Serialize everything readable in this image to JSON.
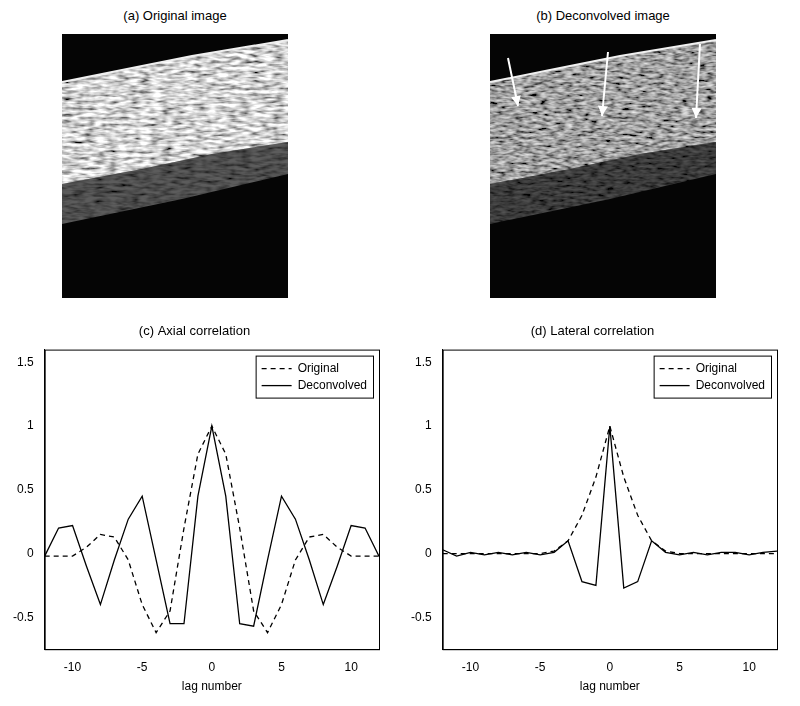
{
  "images": [
    {
      "title": "(a) Original image"
    },
    {
      "title": "(b) Deconvolved image"
    }
  ],
  "chart_data": [
    {
      "type": "line",
      "title": "(c) Axial correlation",
      "xlabel": "lag number",
      "x": [
        -12,
        -11,
        -10,
        -9,
        -8,
        -7,
        -6,
        -5,
        -4,
        -3,
        -2,
        -1,
        0,
        1,
        2,
        3,
        4,
        5,
        6,
        7,
        8,
        9,
        10,
        11,
        12
      ],
      "series": [
        {
          "name": "Original",
          "color": "#000000",
          "line_style": "dashed",
          "values": [
            -0.02,
            -0.02,
            -0.02,
            0.05,
            0.15,
            0.13,
            -0.05,
            -0.4,
            -0.62,
            -0.45,
            0.2,
            0.78,
            1,
            0.78,
            0.2,
            -0.45,
            -0.62,
            -0.4,
            -0.05,
            0.13,
            0.15,
            0.05,
            -0.02,
            -0.02,
            -0.02
          ]
        },
        {
          "name": "Deconvolved",
          "color": "#000000",
          "line_style": "solid",
          "values": [
            -0.02,
            0.2,
            0.22,
            -0.1,
            -0.4,
            -0.05,
            0.27,
            0.45,
            -0.05,
            -0.55,
            -0.55,
            0.45,
            1,
            0.45,
            -0.55,
            -0.57,
            -0.05,
            0.45,
            0.27,
            -0.05,
            -0.4,
            -0.1,
            0.22,
            0.2,
            -0.02
          ]
        }
      ],
      "xlim": [
        -12,
        12
      ],
      "xticks": [
        -10,
        -5,
        0,
        5,
        10
      ],
      "ylim": [
        -0.75,
        1.6
      ],
      "yticks": [
        -0.5,
        0,
        0.5,
        1,
        1.5
      ],
      "grid": false,
      "legend": "upper right"
    },
    {
      "type": "line",
      "title": "(d) Lateral correlation",
      "xlabel": "lag number",
      "x": [
        -12,
        -11,
        -10,
        -9,
        -8,
        -7,
        -6,
        -5,
        -4,
        -3,
        -2,
        -1,
        0,
        1,
        2,
        3,
        4,
        5,
        6,
        7,
        8,
        9,
        10,
        11,
        12
      ],
      "series": [
        {
          "name": "Original",
          "color": "#000000",
          "line_style": "dashed",
          "values": [
            0,
            0,
            0,
            0,
            0,
            0,
            0,
            0,
            0.02,
            0.1,
            0.3,
            0.6,
            1,
            0.6,
            0.3,
            0.1,
            0.02,
            0,
            0,
            0,
            0,
            0,
            0,
            0,
            0
          ]
        },
        {
          "name": "Deconvolved",
          "color": "#000000",
          "line_style": "solid",
          "values": [
            0.03,
            -0.02,
            0.01,
            -0.01,
            0.01,
            -0.01,
            0.01,
            -0.01,
            0.01,
            0.1,
            -0.22,
            -0.25,
            1,
            -0.27,
            -0.22,
            0.1,
            0.01,
            -0.01,
            0.01,
            -0.01,
            0.01,
            0.01,
            -0.01,
            0.01,
            0.02
          ]
        }
      ],
      "xlim": [
        -12,
        12
      ],
      "xticks": [
        -10,
        -5,
        0,
        5,
        10
      ],
      "ylim": [
        -0.75,
        1.6
      ],
      "yticks": [
        -0.5,
        0,
        0.5,
        1,
        1.5
      ],
      "grid": false,
      "legend": "upper right"
    }
  ]
}
